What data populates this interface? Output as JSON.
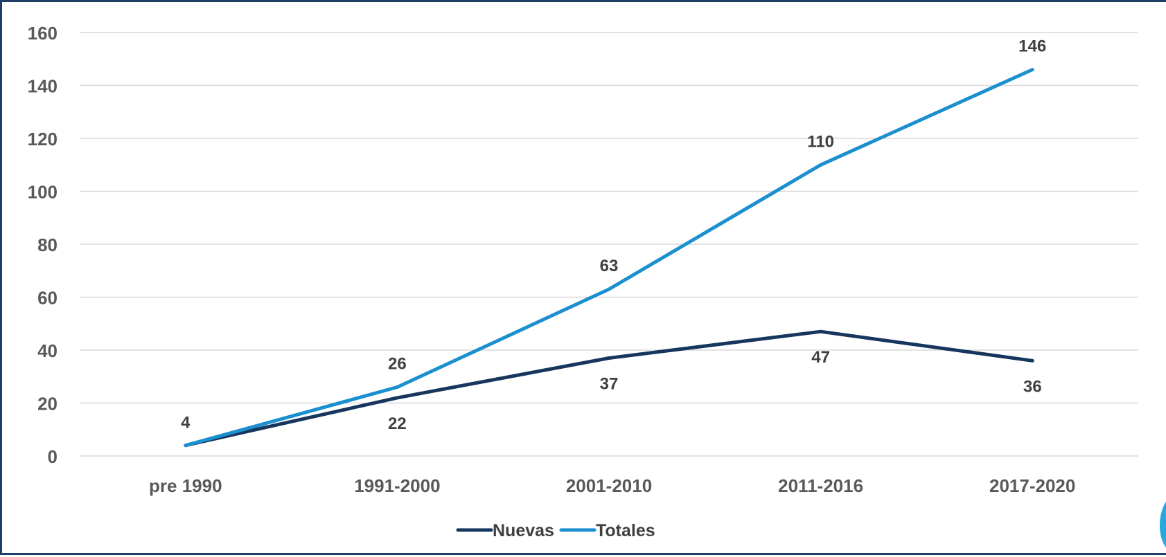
{
  "chart_data": {
    "type": "line",
    "categories": [
      "pre 1990",
      "1991-2000",
      "2001-2010",
      "2011-2016",
      "2017-2020"
    ],
    "series": [
      {
        "name": "Nuevas",
        "values": [
          4,
          22,
          37,
          47,
          36
        ],
        "color": "#16365d",
        "labels": [
          "4",
          "22",
          "37",
          "47",
          "36"
        ]
      },
      {
        "name": "Totales",
        "values": [
          4,
          26,
          63,
          110,
          146
        ],
        "color": "#1b8fd0",
        "labels": [
          "",
          "26",
          "63",
          "110",
          "146"
        ]
      }
    ],
    "ylim": [
      0,
      160
    ],
    "yticks": [
      0,
      20,
      40,
      60,
      80,
      100,
      120,
      140,
      160
    ],
    "ytick_labels": [
      "0",
      "20",
      "40",
      "60",
      "80",
      "100",
      "120",
      "140",
      "160"
    ],
    "grid": true,
    "legend_position": "bottom",
    "title": "",
    "xlabel": "",
    "ylabel": ""
  },
  "colors": {
    "frame": "#1f3f66",
    "grid": "#d9d9d9",
    "accent_shape": "#29a8e0"
  }
}
